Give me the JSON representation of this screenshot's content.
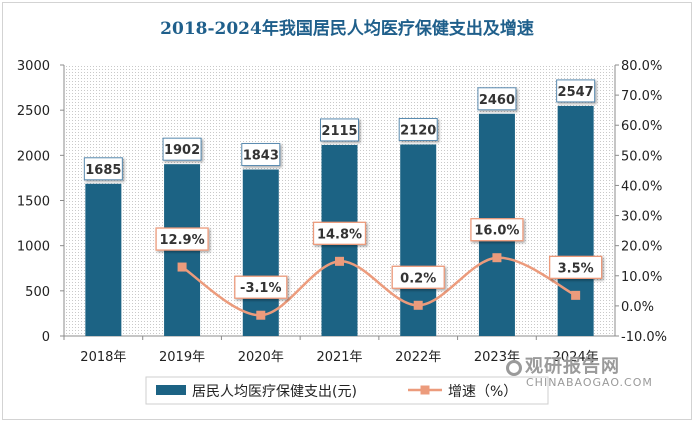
{
  "chart_data": {
    "type": "bar",
    "title": "2018-2024年我国居民人均医疗保健支出及增速",
    "categories": [
      "2018年",
      "2019年",
      "2020年",
      "2021年",
      "2022年",
      "2023年",
      "2024年"
    ],
    "series": [
      {
        "name": "居民人均医疗保健支出(元)",
        "type": "bar",
        "axis": "left",
        "color": "#1c6384",
        "values": [
          1685,
          1902,
          1843,
          2115,
          2120,
          2460,
          2547
        ],
        "labels": [
          "1685",
          "1902",
          "1843",
          "2115",
          "2120",
          "2460",
          "2547"
        ]
      },
      {
        "name": "增速（%）",
        "type": "line",
        "axis": "right",
        "color": "#ec9b7c",
        "values": [
          null,
          12.9,
          -3.1,
          14.8,
          0.2,
          16.0,
          3.5
        ],
        "labels": [
          "",
          "12.9%",
          "-3.1%",
          "14.8%",
          "0.2%",
          "16.0%",
          "3.5%"
        ]
      }
    ],
    "y_left": {
      "range": [
        0,
        3000
      ],
      "ticks": [
        "0",
        "500",
        "1000",
        "1500",
        "2000",
        "2500",
        "3000"
      ]
    },
    "y_right": {
      "range": [
        -10,
        80
      ],
      "ticks": [
        "-10.0%",
        "0.0%",
        "10.0%",
        "20.0%",
        "30.0%",
        "40.0%",
        "50.0%",
        "60.0%",
        "70.0%",
        "80.0%"
      ]
    },
    "legend_position": "bottom",
    "grid": false
  },
  "watermark": {
    "name": "观研报告网",
    "url": "CHINABAOGAO.COM"
  }
}
